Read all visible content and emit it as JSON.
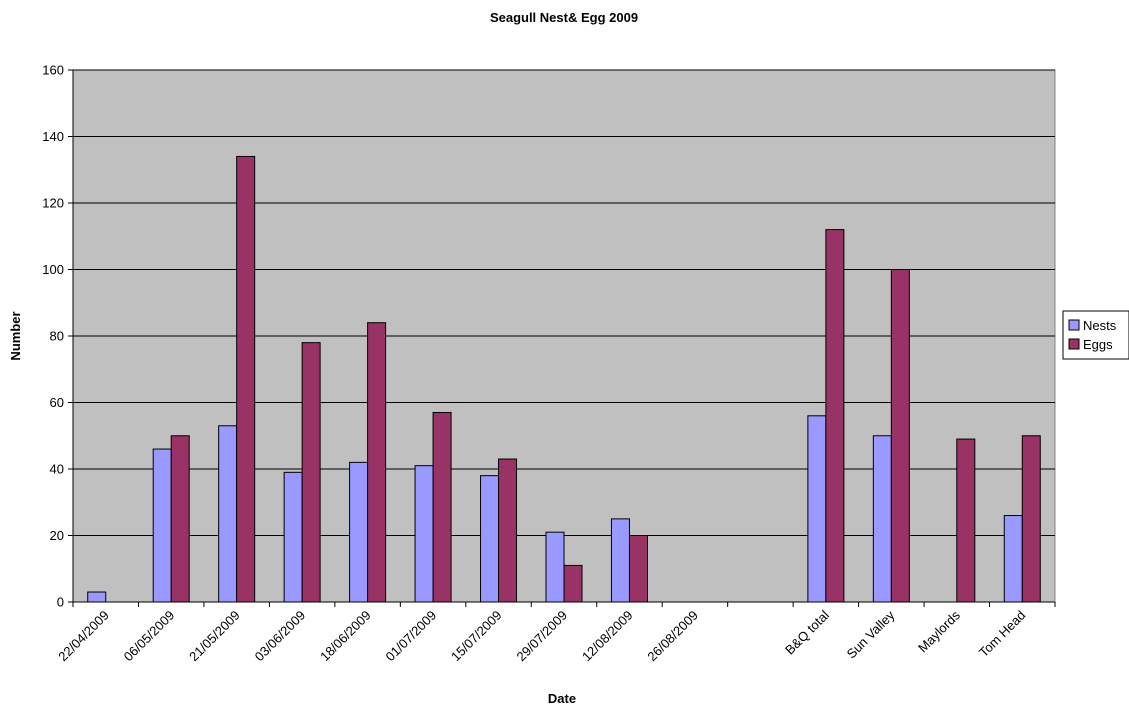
{
  "chart_data": {
    "type": "bar",
    "title": "Seagull Nest& Egg 2009",
    "xlabel": "Date",
    "ylabel": "Number",
    "ylim": [
      0,
      160
    ],
    "yticks": [
      0,
      20,
      40,
      60,
      80,
      100,
      120,
      140,
      160
    ],
    "grid": true,
    "legend_position": "right",
    "categories": [
      "22/04/2009",
      "06/05/2009",
      "21/05/2009",
      "03/06/2009",
      "18/06/2009",
      "01/07/2009",
      "15/07/2009",
      "29/07/2009",
      "12/08/2009",
      "26/08/2009",
      "",
      "B&Q total",
      "Sun Valley",
      "Maylords",
      "Tom Head"
    ],
    "series": [
      {
        "name": "Nests",
        "color": "#9999ff",
        "values": [
          3,
          46,
          53,
          39,
          42,
          41,
          38,
          21,
          25,
          null,
          null,
          56,
          50,
          null,
          26
        ]
      },
      {
        "name": "Eggs",
        "color": "#993366",
        "values": [
          null,
          50,
          134,
          78,
          84,
          57,
          43,
          11,
          20,
          null,
          null,
          112,
          100,
          49,
          50
        ]
      }
    ]
  }
}
